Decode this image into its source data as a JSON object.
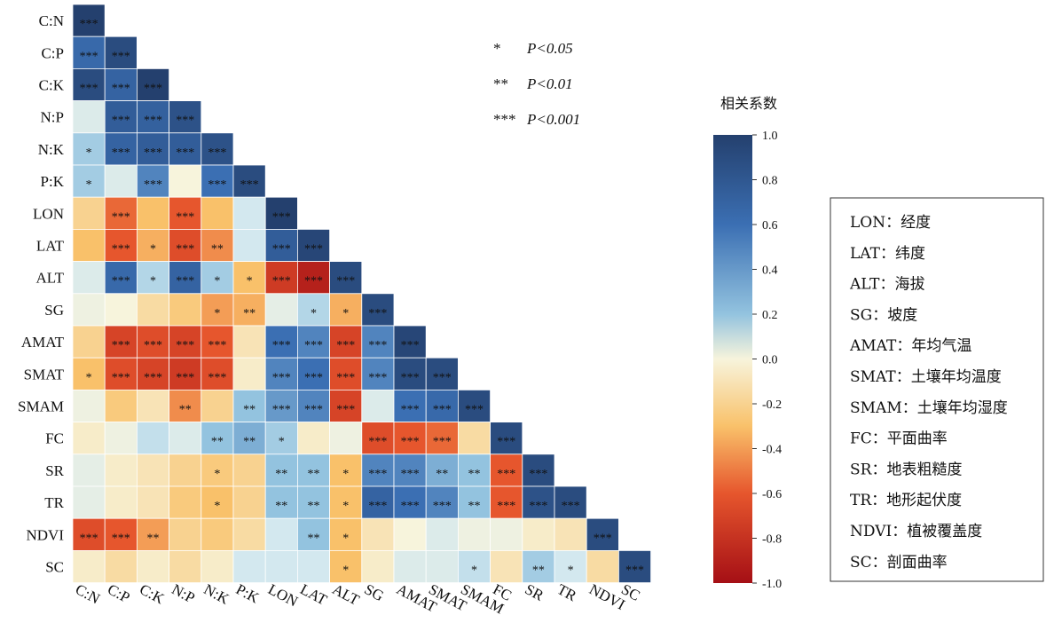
{
  "chart_data": {
    "type": "heatmap",
    "variables": [
      "C:N",
      "C:P",
      "C:K",
      "N:P",
      "N:K",
      "P:K",
      "LON",
      "LAT",
      "ALT",
      "SG",
      "AMAT",
      "SMAT",
      "SMAM",
      "FC",
      "SR",
      "TR",
      "NDVI",
      "SC"
    ],
    "color_scale": {
      "min": -1.0,
      "max": 1.0,
      "low": "#a50f15",
      "mid": "#f7f4dc",
      "high": "#24406e"
    },
    "colorbar": {
      "title": "相关系数",
      "ticks": [
        1.0,
        0.8,
        0.6,
        0.4,
        0.2,
        0.0,
        -0.2,
        -0.4,
        -0.6,
        -0.8,
        -1.0
      ],
      "tick_labels": [
        "1.0",
        "0.8",
        "0.6",
        "0.4",
        "0.2",
        "0.0",
        "-0.2",
        "-0.4",
        "-0.6",
        "-0.8",
        "-1.0"
      ]
    },
    "significance_legend": [
      {
        "stars": "*",
        "label": "P<0.05"
      },
      {
        "stars": "**",
        "label": "P<0.01"
      },
      {
        "stars": "***",
        "label": "P<0.001"
      }
    ],
    "rows": [
      {
        "values": [
          1.0
        ],
        "stars": [
          "***"
        ]
      },
      {
        "values": [
          0.65,
          0.9
        ],
        "stars": [
          "***",
          "***"
        ]
      },
      {
        "values": [
          0.9,
          0.7,
          1.0
        ],
        "stars": [
          "***",
          "***",
          "***"
        ]
      },
      {
        "values": [
          0.15,
          0.75,
          0.72,
          0.85
        ],
        "stars": [
          "",
          "***",
          "***",
          "***"
        ]
      },
      {
        "values": [
          0.35,
          0.7,
          0.75,
          0.75,
          0.85
        ],
        "stars": [
          "*",
          "***",
          "***",
          "***",
          "***"
        ]
      },
      {
        "values": [
          0.35,
          0.15,
          0.55,
          0.0,
          0.6,
          0.9
        ],
        "stars": [
          "*",
          "",
          "***",
          "",
          "***",
          "***"
        ]
      },
      {
        "values": [
          -0.2,
          -0.55,
          -0.3,
          -0.6,
          -0.3,
          0.2,
          1.0
        ],
        "stars": [
          "",
          "***",
          "",
          "***",
          "",
          "",
          "***"
        ]
      },
      {
        "values": [
          -0.3,
          -0.6,
          -0.35,
          -0.65,
          -0.45,
          0.2,
          0.75,
          0.95
        ],
        "stars": [
          "",
          "***",
          "*",
          "***",
          "**",
          "",
          "***",
          "***"
        ]
      },
      {
        "values": [
          0.15,
          0.65,
          0.3,
          0.7,
          0.35,
          -0.3,
          -0.75,
          -0.9,
          0.9
        ],
        "stars": [
          "",
          "***",
          "*",
          "***",
          "*",
          "*",
          "***",
          "***",
          "***"
        ]
      },
      {
        "values": [
          0.05,
          0.0,
          -0.15,
          -0.25,
          -0.4,
          -0.35,
          0.1,
          0.3,
          -0.35,
          0.9
        ],
        "stars": [
          "",
          "",
          "",
          "",
          "*",
          "**",
          "",
          "*",
          "*",
          "***"
        ]
      },
      {
        "values": [
          -0.2,
          -0.7,
          -0.65,
          -0.7,
          -0.6,
          -0.1,
          0.6,
          0.55,
          -0.7,
          0.55,
          0.95
        ],
        "stars": [
          "",
          "***",
          "***",
          "***",
          "***",
          "",
          "***",
          "***",
          "***",
          "***",
          "***"
        ]
      },
      {
        "values": [
          -0.3,
          -0.65,
          -0.7,
          -0.75,
          -0.65,
          -0.05,
          0.55,
          0.6,
          -0.65,
          0.55,
          0.9,
          0.9
        ],
        "stars": [
          "*",
          "***",
          "***",
          "***",
          "***",
          "",
          "***",
          "***",
          "***",
          "***",
          "***",
          "***"
        ]
      },
      {
        "values": [
          0.05,
          -0.25,
          -0.1,
          -0.45,
          -0.2,
          0.4,
          0.5,
          0.55,
          -0.7,
          0.15,
          0.6,
          0.65,
          0.9
        ],
        "stars": [
          "",
          "",
          "",
          "**",
          "",
          "**",
          "***",
          "***",
          "***",
          "",
          "***",
          "***",
          "***"
        ]
      },
      {
        "values": [
          -0.05,
          0.05,
          0.25,
          0.15,
          0.4,
          0.45,
          0.35,
          -0.05,
          0.05,
          -0.65,
          -0.6,
          -0.55,
          -0.15,
          0.9
        ],
        "stars": [
          "",
          "",
          "",
          "",
          "**",
          "**",
          "*",
          "",
          "",
          "***",
          "***",
          "***",
          "",
          "***"
        ]
      },
      {
        "values": [
          0.1,
          -0.05,
          -0.1,
          -0.2,
          -0.25,
          -0.2,
          0.4,
          0.4,
          -0.3,
          0.55,
          0.55,
          0.45,
          0.4,
          -0.6,
          0.9
        ],
        "stars": [
          "",
          "",
          "",
          "",
          "*",
          "",
          "**",
          "**",
          "*",
          "***",
          "***",
          "**",
          "**",
          "***",
          "***"
        ]
      },
      {
        "values": [
          0.1,
          -0.05,
          -0.1,
          -0.25,
          -0.3,
          -0.2,
          0.4,
          0.4,
          -0.3,
          0.7,
          0.6,
          0.55,
          0.4,
          -0.6,
          0.85,
          0.9
        ],
        "stars": [
          "",
          "",
          "",
          "",
          "*",
          "",
          "**",
          "**",
          "*",
          "***",
          "***",
          "***",
          "**",
          "***",
          "***",
          "***"
        ]
      },
      {
        "values": [
          -0.65,
          -0.6,
          -0.4,
          -0.2,
          -0.25,
          -0.15,
          0.2,
          0.4,
          -0.3,
          -0.1,
          0.0,
          0.15,
          0.05,
          0.05,
          -0.05,
          -0.1,
          0.9
        ],
        "stars": [
          "***",
          "***",
          "**",
          "",
          "",
          "",
          "",
          "**",
          "*",
          "",
          "",
          "",
          "",
          "",
          "",
          "",
          "***"
        ]
      },
      {
        "values": [
          -0.05,
          -0.15,
          -0.05,
          -0.15,
          -0.05,
          0.2,
          0.2,
          0.2,
          -0.3,
          -0.05,
          0.15,
          0.15,
          0.25,
          -0.1,
          0.35,
          0.2,
          -0.15,
          0.9
        ],
        "stars": [
          "",
          "",
          "",
          "",
          "",
          "",
          "",
          "",
          "*",
          "",
          "",
          "",
          "*",
          "",
          "**",
          "*",
          "",
          "***"
        ]
      }
    ]
  },
  "abbreviations": [
    "LON：经度",
    "LAT：纬度",
    "ALT：海拔",
    "SG：坡度",
    "AMAT：年均气温",
    "SMAT：土壤年均温度",
    "SMAM：土壤年均湿度",
    "FC：平面曲率",
    "SR：地表粗糙度",
    "TR：地形起伏度",
    "NDVI：植被覆盖度",
    "SC：剖面曲率"
  ]
}
